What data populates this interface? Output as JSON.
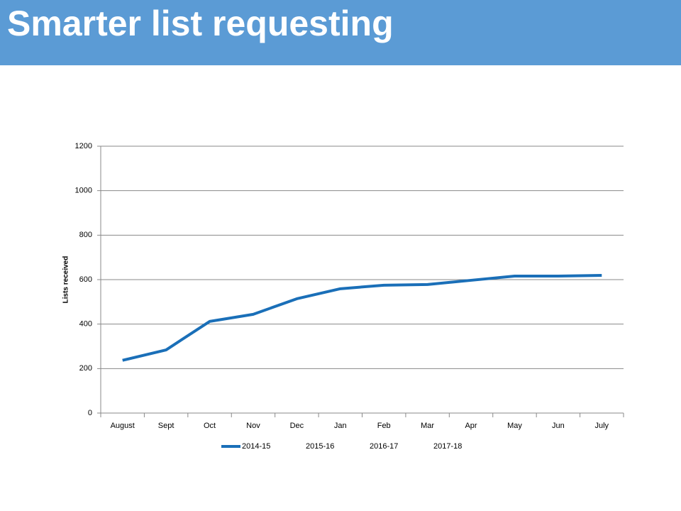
{
  "header": {
    "title": "Smarter list requesting"
  },
  "chart_data": {
    "type": "line",
    "y_label": "Lists received",
    "categories": [
      "August",
      "Sept",
      "Oct",
      "Nov",
      "Dec",
      "Jan",
      "Feb",
      "Mar",
      "Apr",
      "May",
      "Jun",
      "July"
    ],
    "series": [
      {
        "name": "2014-15",
        "color": "#1a6fb8",
        "values": [
          237,
          284,
          412,
          444,
          514,
          559,
          575,
          578,
          597,
          616,
          616,
          619
        ]
      },
      {
        "name": "2015-16",
        "values": [
          null,
          null,
          null,
          null,
          null,
          null,
          null,
          null,
          null,
          null,
          null,
          null
        ]
      },
      {
        "name": "2016-17",
        "values": [
          null,
          null,
          null,
          null,
          null,
          null,
          null,
          null,
          null,
          null,
          null,
          null
        ]
      },
      {
        "name": "2017-18",
        "values": [
          null,
          null,
          null,
          null,
          null,
          null,
          null,
          null,
          null,
          null,
          null,
          null
        ]
      }
    ],
    "ylim": [
      0,
      1200
    ],
    "yticks": [
      0,
      200,
      400,
      600,
      800,
      1000,
      1200
    ],
    "grid": true
  }
}
